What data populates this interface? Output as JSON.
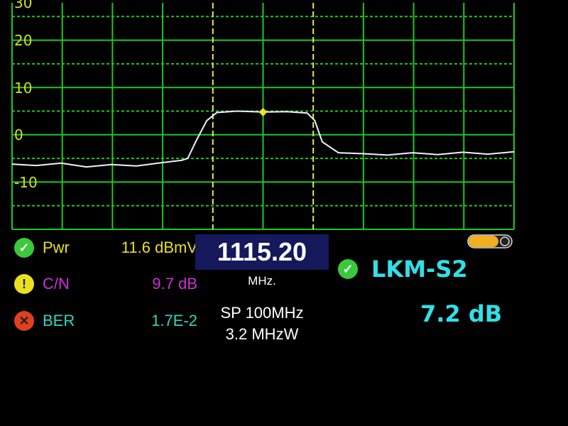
{
  "spectrum": {
    "y_axis_labels": [
      "30",
      "20",
      "10",
      "0",
      "-10"
    ],
    "y_range_db": [
      -20,
      30
    ],
    "center_mhz": 1115.2,
    "span_mhz": 100,
    "marker_mhz": 1115.2,
    "trace_mhz_db": [
      [
        1065.2,
        -6.2
      ],
      [
        1070,
        -6.5
      ],
      [
        1075,
        -6.0
      ],
      [
        1080,
        -6.8
      ],
      [
        1085,
        -6.3
      ],
      [
        1090,
        -6.6
      ],
      [
        1095,
        -5.9
      ],
      [
        1099,
        -5.4
      ],
      [
        1100.2,
        -5.0
      ],
      [
        1102,
        -1
      ],
      [
        1104,
        3
      ],
      [
        1106,
        4.7
      ],
      [
        1110,
        5.0
      ],
      [
        1115.2,
        4.8
      ],
      [
        1120,
        4.9
      ],
      [
        1124,
        4.6
      ],
      [
        1125.5,
        3
      ],
      [
        1127,
        -1.5
      ],
      [
        1130.2,
        -3.8
      ],
      [
        1135,
        -4.0
      ],
      [
        1140,
        -4.3
      ],
      [
        1145,
        -3.8
      ],
      [
        1150,
        -4.2
      ],
      [
        1155,
        -3.7
      ],
      [
        1160,
        -4.1
      ],
      [
        1165.2,
        -3.6
      ]
    ],
    "colors": {
      "grid": "#1fc81f",
      "channel_lines": "#e8e860",
      "trace": "#f0f0ff",
      "marker": "#f0e020"
    }
  },
  "measurements": [
    {
      "label": "Pwr",
      "value": "11.6 dBmV",
      "status": "ok-icon",
      "color": "#e8e020"
    },
    {
      "label": "C/N",
      "value": "9.7 dB",
      "status": "warning-icon",
      "color": "#d030d8"
    },
    {
      "label": "BER",
      "value": "1.7E-2",
      "status": "error-icon",
      "color": "#30d8c0"
    }
  ],
  "frequency": {
    "value": "1115.20",
    "unit": "MHz.",
    "span": "SP 100MHz",
    "bandwidth": "3.2 MHzW"
  },
  "lock": {
    "label": "LKM-S2",
    "margin": "7.2 dB",
    "status": "ok-icon"
  },
  "battery_level": 0.7
}
